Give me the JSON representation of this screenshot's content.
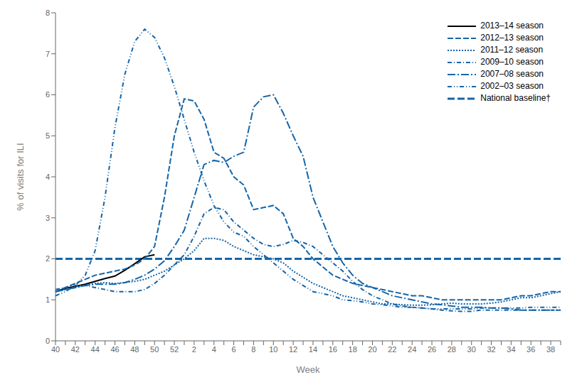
{
  "chart_data": {
    "type": "line",
    "xlabel": "Week",
    "ylabel": "% of visits for ILI",
    "categories": [
      "40",
      null,
      "42",
      null,
      "44",
      null,
      "46",
      null,
      "48",
      null,
      "50",
      null,
      "52",
      null,
      "2",
      null,
      "4",
      null,
      "6",
      null,
      "8",
      null,
      "10",
      null,
      "12",
      null,
      "14",
      null,
      "16",
      null,
      "18",
      null,
      "20",
      null,
      "22",
      null,
      "24",
      null,
      "26",
      null,
      "28",
      null,
      "30",
      null,
      "32",
      null,
      "34",
      null,
      "36",
      null,
      "38",
      null
    ],
    "ylim": [
      0,
      8
    ],
    "yticks": [
      0,
      1,
      2,
      3,
      4,
      5,
      6,
      7,
      8
    ],
    "grid": false,
    "legend": "upper right",
    "series": [
      {
        "name": "2013–14 season",
        "color": "#000000",
        "line_style": "solid",
        "values": [
          1.2,
          1.28,
          1.33,
          1.38,
          1.45,
          1.52,
          1.58,
          1.72,
          1.88,
          2.05,
          2.1,
          null,
          null,
          null,
          null,
          null,
          null,
          null,
          null,
          null,
          null,
          null,
          null,
          null,
          null,
          null,
          null,
          null,
          null,
          null,
          null,
          null,
          null,
          null,
          null,
          null,
          null,
          null,
          null,
          null,
          null,
          null,
          null,
          null,
          null,
          null,
          null,
          null,
          null,
          null,
          null,
          null
        ]
      },
      {
        "name": "2012–13 season",
        "color": "#1565a8",
        "line_style": "dashed",
        "values": [
          1.2,
          1.3,
          1.4,
          1.5,
          1.6,
          1.65,
          1.7,
          1.75,
          1.85,
          2.0,
          2.3,
          3.5,
          5.0,
          5.9,
          5.85,
          5.4,
          4.6,
          4.45,
          4.0,
          3.8,
          3.2,
          3.25,
          3.3,
          3.1,
          2.5,
          2.3,
          2.0,
          1.8,
          1.6,
          1.5,
          1.4,
          1.35,
          1.3,
          1.25,
          1.2,
          1.15,
          1.1,
          1.1,
          1.05,
          1.0,
          1.0,
          1.0,
          1.0,
          1.0,
          1.0,
          1.0,
          1.05,
          1.1,
          1.1,
          1.15,
          1.2,
          1.2
        ]
      },
      {
        "name": "2011–12 season",
        "color": "#1565a8",
        "line_style": "dotted",
        "values": [
          1.2,
          1.25,
          1.3,
          1.35,
          1.4,
          1.42,
          1.4,
          1.42,
          1.45,
          1.5,
          1.6,
          1.7,
          1.85,
          2.0,
          2.2,
          2.5,
          2.5,
          2.45,
          2.3,
          2.2,
          2.1,
          2.05,
          2.0,
          1.9,
          1.7,
          1.55,
          1.4,
          1.3,
          1.2,
          1.1,
          1.05,
          1.0,
          0.95,
          0.9,
          0.9,
          0.88,
          0.87,
          0.87,
          0.88,
          0.9,
          0.92,
          0.9,
          0.9,
          0.9,
          0.92,
          0.95,
          1.0,
          1.05,
          1.05,
          1.1,
          1.15,
          1.2
        ]
      },
      {
        "name": "2009–10 season",
        "color": "#1565a8",
        "line_style": "dashdot",
        "values": [
          1.25,
          1.3,
          1.35,
          1.35,
          1.3,
          1.25,
          1.2,
          1.2,
          1.2,
          1.25,
          1.4,
          1.6,
          1.85,
          2.1,
          2.55,
          3.1,
          3.25,
          3.2,
          2.9,
          2.7,
          2.5,
          2.35,
          2.3,
          2.35,
          2.45,
          2.4,
          2.3,
          2.1,
          1.9,
          1.7,
          1.45,
          1.25,
          1.1,
          1.0,
          0.9,
          0.85,
          0.82,
          0.8,
          0.78,
          0.75,
          0.73,
          0.72,
          0.72,
          0.75,
          0.75,
          0.75,
          0.75,
          0.75,
          0.75,
          0.75,
          0.75,
          0.75
        ]
      },
      {
        "name": "2007–08 season",
        "color": "#1565a8",
        "line_style": "longdashdot",
        "values": [
          1.2,
          1.25,
          1.3,
          1.35,
          1.38,
          1.38,
          1.38,
          1.42,
          1.5,
          1.6,
          1.75,
          1.95,
          2.3,
          2.7,
          3.5,
          4.3,
          4.4,
          4.35,
          4.5,
          4.6,
          5.7,
          5.95,
          6.0,
          5.55,
          5.0,
          4.5,
          3.5,
          2.9,
          2.3,
          1.9,
          1.6,
          1.4,
          1.3,
          1.2,
          1.1,
          1.05,
          1.0,
          0.95,
          0.9,
          0.88,
          0.85,
          0.82,
          0.82,
          0.82,
          0.8,
          0.8,
          0.78,
          0.75,
          0.75,
          0.75,
          0.75,
          0.75
        ]
      },
      {
        "name": "2002–03 season",
        "color": "#1565a8",
        "line_style": "dashdotdot",
        "values": [
          1.1,
          1.2,
          1.35,
          1.6,
          2.2,
          3.5,
          5.2,
          6.5,
          7.3,
          7.6,
          7.4,
          6.9,
          6.2,
          5.4,
          4.6,
          3.9,
          3.3,
          2.9,
          2.65,
          2.55,
          2.3,
          2.1,
          1.9,
          1.7,
          1.5,
          1.35,
          1.2,
          1.15,
          1.1,
          1.0,
          0.98,
          0.95,
          0.9,
          0.88,
          0.85,
          0.82,
          0.82,
          0.8,
          0.78,
          0.78,
          0.78,
          0.78,
          0.78,
          0.8,
          0.8,
          0.8,
          0.8,
          0.8,
          0.82,
          0.82,
          0.82,
          0.82
        ]
      }
    ],
    "baseline": {
      "name": "National baseline†",
      "value": 2.0,
      "color": "#1565a8",
      "line_style": "dashed"
    }
  }
}
